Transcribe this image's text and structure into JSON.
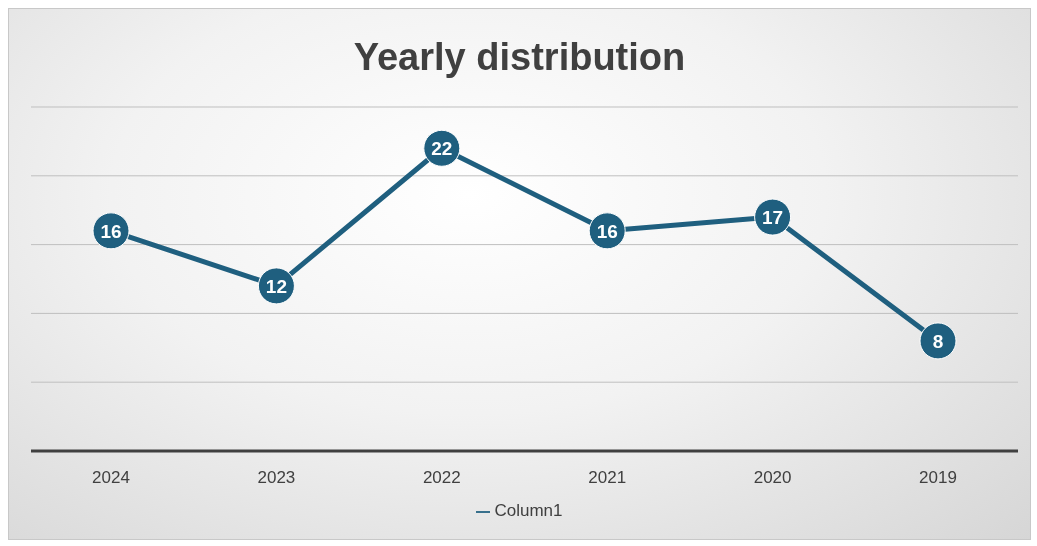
{
  "chart_data": {
    "type": "line",
    "title": "Yearly distribution",
    "categories": [
      "2024",
      "2023",
      "2022",
      "2021",
      "2020",
      "2019"
    ],
    "series": [
      {
        "name": "Column1",
        "color": "#1f5f7f",
        "values": [
          16,
          12,
          22,
          16,
          17,
          8
        ]
      }
    ],
    "ylim": [
      0,
      25
    ],
    "yticks": [
      {
        "value": 0,
        "label": null
      },
      {
        "value": 5,
        "label": null
      },
      {
        "value": 10,
        "label": null
      },
      {
        "value": 15,
        "label": null
      },
      {
        "value": 20,
        "label": null
      },
      {
        "value": 25,
        "label": null
      }
    ],
    "tick_labels": "x",
    "grid": "y",
    "legend": "bottom",
    "marker": "circle",
    "line_style": "solid",
    "data_labels": true
  }
}
